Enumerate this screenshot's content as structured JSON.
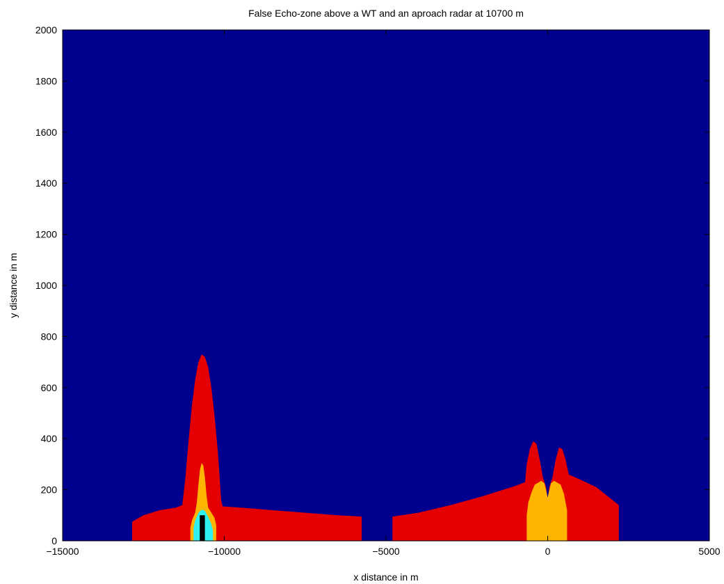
{
  "chart_data": {
    "type": "area",
    "title": "False Echo-zone above a WT and an aproach radar at 10700 m",
    "xlabel": "x distance in m",
    "ylabel": "y distance in m",
    "xlim": [
      -15000,
      5000
    ],
    "ylim": [
      0,
      2000
    ],
    "x_ticks": [
      -15000,
      -10000,
      -5000,
      0,
      5000
    ],
    "y_ticks": [
      0,
      200,
      400,
      600,
      800,
      1000,
      1200,
      1400,
      1600,
      1800,
      2000
    ],
    "x_tick_labels": [
      "−15000",
      "−10000",
      "−5000",
      "0",
      "5000"
    ],
    "y_tick_labels": [
      "0",
      "200",
      "400",
      "600",
      "800",
      "1000",
      "1200",
      "1400",
      "1600",
      "1800",
      "2000"
    ],
    "grid": false,
    "background_color": "#00008f",
    "zones": [
      {
        "color": "#e40000",
        "points": [
          [
            -12850,
            0
          ],
          [
            -12850,
            75
          ],
          [
            -12500,
            100
          ],
          [
            -12000,
            120
          ],
          [
            -11500,
            130
          ],
          [
            -11300,
            140
          ],
          [
            -11200,
            250
          ],
          [
            -11100,
            400
          ],
          [
            -11000,
            530
          ],
          [
            -10900,
            630
          ],
          [
            -10800,
            700
          ],
          [
            -10700,
            730
          ],
          [
            -10600,
            720
          ],
          [
            -10500,
            680
          ],
          [
            -10400,
            600
          ],
          [
            -10300,
            490
          ],
          [
            -10200,
            350
          ],
          [
            -10150,
            260
          ],
          [
            -10100,
            160
          ],
          [
            -10050,
            135
          ],
          [
            -9500,
            130
          ],
          [
            -8500,
            120
          ],
          [
            -7500,
            110
          ],
          [
            -6500,
            100
          ],
          [
            -5750,
            95
          ],
          [
            -5750,
            0
          ]
        ]
      },
      {
        "color": "#e40000",
        "points": [
          [
            -4800,
            0
          ],
          [
            -4800,
            95
          ],
          [
            -4000,
            110
          ],
          [
            -3000,
            140
          ],
          [
            -2000,
            175
          ],
          [
            -1500,
            195
          ],
          [
            -1000,
            215
          ],
          [
            -700,
            230
          ],
          [
            -650,
            300
          ],
          [
            -550,
            360
          ],
          [
            -450,
            390
          ],
          [
            -350,
            380
          ],
          [
            -250,
            320
          ],
          [
            -150,
            250
          ],
          [
            -50,
            210
          ],
          [
            0,
            160
          ],
          [
            50,
            210
          ],
          [
            150,
            250
          ],
          [
            250,
            320
          ],
          [
            350,
            365
          ],
          [
            450,
            360
          ],
          [
            550,
            320
          ],
          [
            650,
            260
          ],
          [
            1000,
            240
          ],
          [
            1500,
            210
          ],
          [
            2000,
            160
          ],
          [
            2200,
            140
          ],
          [
            2200,
            0
          ]
        ]
      },
      {
        "color": "#ffb400",
        "points": [
          [
            -11050,
            0
          ],
          [
            -11050,
            50
          ],
          [
            -11000,
            80
          ],
          [
            -10900,
            110
          ],
          [
            -10850,
            150
          ],
          [
            -10800,
            220
          ],
          [
            -10750,
            280
          ],
          [
            -10700,
            305
          ],
          [
            -10650,
            295
          ],
          [
            -10600,
            250
          ],
          [
            -10550,
            180
          ],
          [
            -10500,
            130
          ],
          [
            -10400,
            110
          ],
          [
            -10300,
            90
          ],
          [
            -10250,
            60
          ],
          [
            -10250,
            0
          ]
        ]
      },
      {
        "color": "#ffb400",
        "points": [
          [
            -650,
            0
          ],
          [
            -650,
            100
          ],
          [
            -600,
            150
          ],
          [
            -500,
            190
          ],
          [
            -400,
            220
          ],
          [
            -200,
            235
          ],
          [
            -100,
            225
          ],
          [
            0,
            170
          ],
          [
            100,
            225
          ],
          [
            200,
            235
          ],
          [
            400,
            220
          ],
          [
            500,
            185
          ],
          [
            600,
            120
          ],
          [
            600,
            0
          ]
        ]
      },
      {
        "color": "#2ff0f0",
        "points": [
          [
            -10950,
            0
          ],
          [
            -10950,
            50
          ],
          [
            -10900,
            80
          ],
          [
            -10800,
            110
          ],
          [
            -10700,
            122
          ],
          [
            -10600,
            118
          ],
          [
            -10500,
            95
          ],
          [
            -10400,
            65
          ],
          [
            -10350,
            40
          ],
          [
            -10350,
            0
          ]
        ]
      },
      {
        "color": "#000000",
        "points": [
          [
            -10760,
            0
          ],
          [
            -10760,
            100
          ],
          [
            -10600,
            100
          ],
          [
            -10600,
            0
          ]
        ]
      }
    ]
  }
}
